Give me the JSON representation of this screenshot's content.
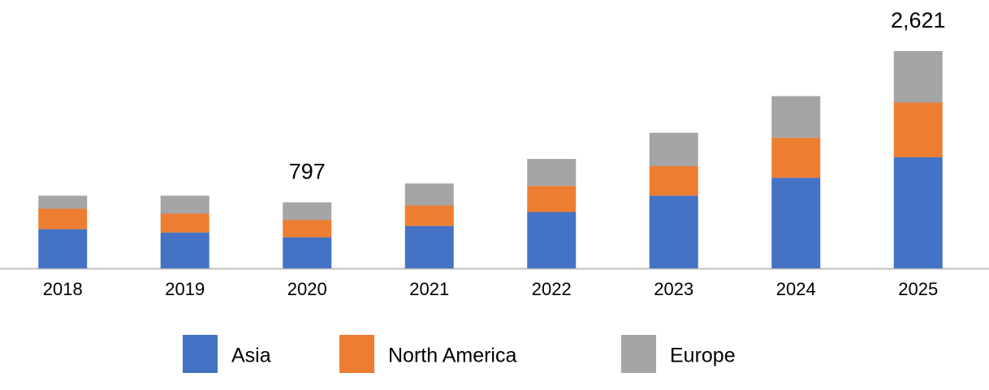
{
  "chart_data": {
    "type": "stacked_bar",
    "categories": [
      "2018",
      "2019",
      "2020",
      "2021",
      "2022",
      "2023",
      "2024",
      "2025"
    ],
    "series": [
      {
        "name": "Asia",
        "color": "#4472c4",
        "values": [
          473,
          433,
          375,
          512,
          680,
          877,
          1093,
          1340
        ]
      },
      {
        "name": "North America",
        "color": "#ed7d31",
        "values": [
          246,
          227,
          207,
          246,
          315,
          355,
          483,
          660
        ]
      },
      {
        "name": "Europe",
        "color": "#a5a5a5",
        "values": [
          158,
          217,
          215,
          266,
          325,
          404,
          502,
          621
        ]
      }
    ],
    "totals": [
      null,
      null,
      797,
      null,
      null,
      null,
      null,
      2621
    ],
    "totals_labels": [
      null,
      null,
      "797",
      null,
      null,
      null,
      null,
      "2,621"
    ],
    "legend": "bottom"
  }
}
